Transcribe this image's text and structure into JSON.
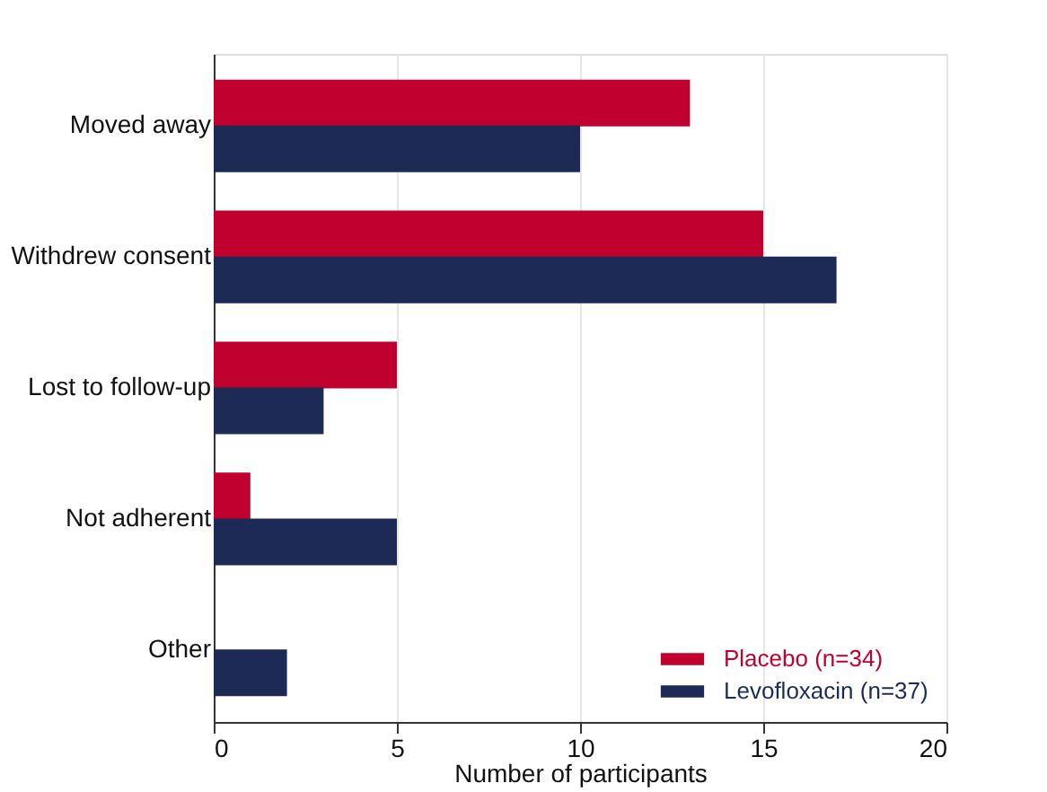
{
  "chart_data": {
    "type": "bar",
    "orientation": "horizontal",
    "xlabel": "Number of participants",
    "categories": [
      "Moved away",
      "Withdrew consent",
      "Lost to follow-up",
      "Not adherent",
      "Other"
    ],
    "series": [
      {
        "name": "Placebo (n=34)",
        "color": "#c0002f",
        "values": [
          13,
          15,
          5,
          1,
          0
        ]
      },
      {
        "name": "Levofloxacin (n=37)",
        "color": "#1c2a55",
        "values": [
          10,
          17,
          3,
          5,
          2
        ]
      }
    ],
    "xlim": [
      0,
      20
    ],
    "xticks": [
      0,
      5,
      10,
      15,
      20
    ],
    "grid": "x",
    "legend": "bottom right"
  }
}
